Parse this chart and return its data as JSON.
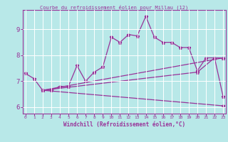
{
  "title": "Courbe du refroidissement éolien pour Millau (12)",
  "xlabel": "Windchill (Refroidissement éolien,°C)",
  "bg_color": "#b8e8e8",
  "grid_color": "#ffffff",
  "line_color": "#993399",
  "x_hours": [
    0,
    1,
    2,
    3,
    4,
    5,
    6,
    7,
    8,
    9,
    10,
    11,
    12,
    13,
    14,
    15,
    16,
    17,
    18,
    19,
    20,
    21,
    22,
    23
  ],
  "line1_x": [
    0,
    1,
    2,
    3,
    4,
    5,
    6,
    7,
    8,
    9,
    10,
    11,
    12,
    13,
    14,
    15,
    16,
    17,
    18,
    19,
    20,
    21,
    22,
    23
  ],
  "line1_y": [
    7.3,
    7.1,
    6.65,
    6.65,
    6.8,
    6.8,
    7.6,
    7.0,
    7.35,
    7.55,
    8.7,
    8.5,
    8.8,
    8.75,
    9.5,
    8.7,
    8.5,
    8.5,
    8.3,
    8.3,
    7.4,
    7.9,
    7.9,
    6.4
  ],
  "line2_x": [
    2,
    23
  ],
  "line2_y": [
    6.65,
    7.9
  ],
  "line3_x": [
    2,
    20,
    22,
    23
  ],
  "line3_y": [
    6.65,
    7.35,
    7.9,
    7.9
  ],
  "line4_x": [
    2,
    23
  ],
  "line4_y": [
    6.65,
    6.05
  ],
  "ylim": [
    5.75,
    9.75
  ],
  "yticks": [
    6,
    7,
    8,
    9
  ],
  "xlim": [
    -0.3,
    23.3
  ]
}
